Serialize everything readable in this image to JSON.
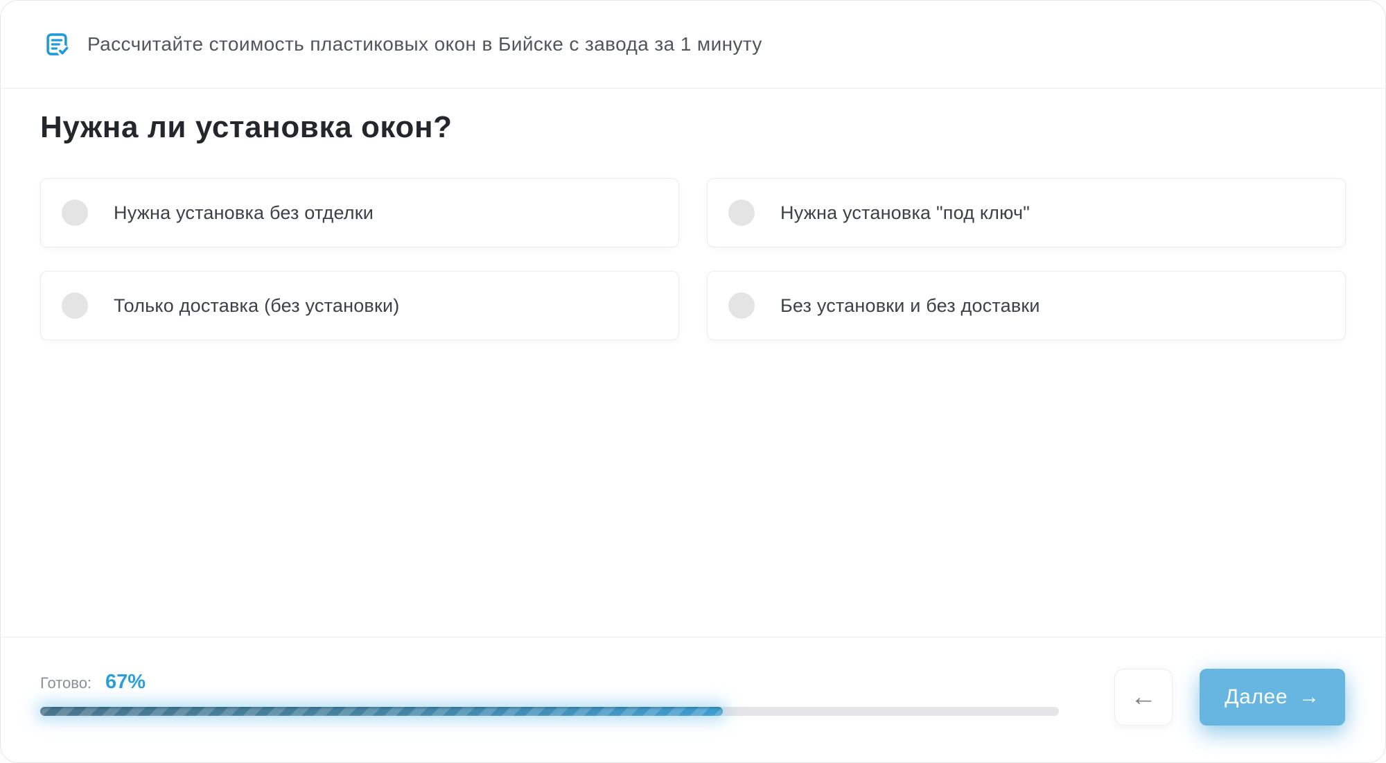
{
  "header": {
    "icon": "checklist-icon",
    "title": "Рассчитайте стоимость пластиковых окон в Бийске с завода за 1 минуту"
  },
  "question": {
    "title": "Нужна ли установка окон?",
    "options": [
      {
        "label": "Нужна установка без отделки"
      },
      {
        "label": "Нужна установка \"под ключ\""
      },
      {
        "label": "Только доставка (без установки)"
      },
      {
        "label": "Без установки и без доставки"
      }
    ]
  },
  "footer": {
    "progress_label": "Готово:",
    "progress_value": "67%",
    "progress_percent": 67,
    "back_icon": "arrow-left-icon",
    "back_glyph": "←",
    "next_label": "Далее",
    "next_icon": "arrow-right-icon",
    "next_glyph": "→"
  },
  "colors": {
    "accent_blue": "#1e9cd7",
    "percent_blue": "#2b9fd9",
    "button_blue": "#66b6e1",
    "progress_teal": "#45819f",
    "progress_blue": "#3e9dcf",
    "track_gray": "#e5e5e7",
    "radio_gray": "#e4e4e4",
    "heading_dark": "#23262b",
    "text_gray": "#51555e"
  }
}
